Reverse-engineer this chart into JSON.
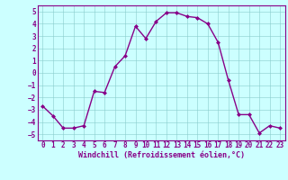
{
  "x": [
    0,
    1,
    2,
    3,
    4,
    5,
    6,
    7,
    8,
    9,
    10,
    11,
    12,
    13,
    14,
    15,
    16,
    17,
    18,
    19,
    20,
    21,
    22,
    23
  ],
  "y": [
    -2.7,
    -3.5,
    -4.5,
    -4.5,
    -4.3,
    -1.5,
    -1.6,
    0.5,
    1.4,
    3.8,
    2.8,
    4.2,
    4.9,
    4.9,
    4.6,
    4.5,
    4.0,
    2.5,
    -0.6,
    -3.4,
    -3.4,
    -4.9,
    -4.3,
    -4.5
  ],
  "line_color": "#880088",
  "marker": "D",
  "markersize": 2.0,
  "linewidth": 1.0,
  "bg_color": "#ccffff",
  "grid_color": "#88cccc",
  "xlabel": "Windchill (Refroidissement éolien,°C)",
  "xlabel_color": "#880088",
  "xlabel_fontsize": 6.0,
  "tick_label_color": "#880088",
  "tick_label_fontsize": 5.5,
  "ylim": [
    -5.5,
    5.5
  ],
  "xlim": [
    -0.5,
    23.5
  ],
  "yticks": [
    -5,
    -4,
    -3,
    -2,
    -1,
    0,
    1,
    2,
    3,
    4,
    5
  ],
  "xticks": [
    0,
    1,
    2,
    3,
    4,
    5,
    6,
    7,
    8,
    9,
    10,
    11,
    12,
    13,
    14,
    15,
    16,
    17,
    18,
    19,
    20,
    21,
    22,
    23
  ]
}
